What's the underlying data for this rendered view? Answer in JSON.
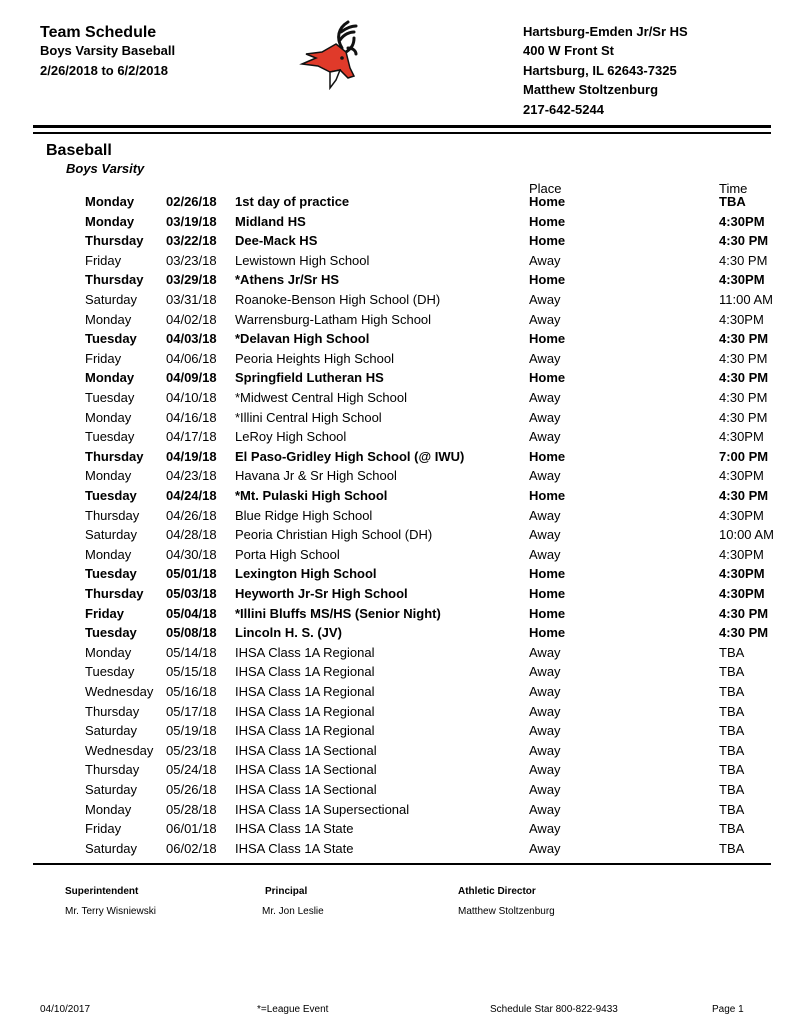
{
  "header": {
    "title": "Team Schedule",
    "subtitle": "Boys Varsity Baseball",
    "date_range": "2/26/2018 to 6/2/2018",
    "school": [
      "Hartsburg-Emden Jr/Sr HS",
      "400 W Front St",
      "Hartsburg, IL 62643-7325",
      "Matthew Stoltzenburg",
      "217-642-5244"
    ],
    "logo": "deer-mascot-logo",
    "logo_color": "#e03a2a"
  },
  "section": {
    "sport": "Baseball",
    "level": "Boys Varsity"
  },
  "columns": {
    "place": "Place",
    "time": "Time"
  },
  "rows": [
    {
      "day": "Monday",
      "date": "02/26/18",
      "opponent": "1st day of practice",
      "place": "Home",
      "time": "TBA",
      "home": true
    },
    {
      "day": "Monday",
      "date": "03/19/18",
      "opponent": "Midland HS",
      "place": "Home",
      "time": "4:30PM",
      "home": true
    },
    {
      "day": "Thursday",
      "date": "03/22/18",
      "opponent": "Dee-Mack HS",
      "place": "Home",
      "time": "4:30 PM",
      "home": true
    },
    {
      "day": "Friday",
      "date": "03/23/18",
      "opponent": "Lewistown High School",
      "place": "Away",
      "time": "4:30 PM",
      "home": false
    },
    {
      "day": "Thursday",
      "date": "03/29/18",
      "opponent": "*Athens Jr/Sr HS",
      "place": "Home",
      "time": "4:30PM",
      "home": true
    },
    {
      "day": "Saturday",
      "date": "03/31/18",
      "opponent": "Roanoke-Benson High School (DH)",
      "place": "Away",
      "time": "11:00 AM",
      "home": false
    },
    {
      "day": "Monday",
      "date": "04/02/18",
      "opponent": "Warrensburg-Latham High School",
      "place": "Away",
      "time": "4:30PM",
      "home": false
    },
    {
      "day": "Tuesday",
      "date": "04/03/18",
      "opponent": "*Delavan High School",
      "place": "Home",
      "time": "4:30 PM",
      "home": true
    },
    {
      "day": "Friday",
      "date": "04/06/18",
      "opponent": "Peoria Heights High School",
      "place": "Away",
      "time": "4:30 PM",
      "home": false
    },
    {
      "day": "Monday",
      "date": "04/09/18",
      "opponent": "Springfield Lutheran HS",
      "place": "Home",
      "time": "4:30 PM",
      "home": true
    },
    {
      "day": "Tuesday",
      "date": "04/10/18",
      "opponent": "*Midwest Central High School",
      "place": "Away",
      "time": "4:30 PM",
      "home": false
    },
    {
      "day": "Monday",
      "date": "04/16/18",
      "opponent": "*Illini Central High School",
      "place": "Away",
      "time": "4:30 PM",
      "home": false
    },
    {
      "day": "Tuesday",
      "date": "04/17/18",
      "opponent": "LeRoy High School",
      "place": "Away",
      "time": "4:30PM",
      "home": false
    },
    {
      "day": "Thursday",
      "date": "04/19/18",
      "opponent": "El Paso-Gridley High School (@ IWU)",
      "place": "Home",
      "time": "7:00 PM",
      "home": true
    },
    {
      "day": "Monday",
      "date": "04/23/18",
      "opponent": "Havana Jr & Sr High School",
      "place": "Away",
      "time": "4:30PM",
      "home": false
    },
    {
      "day": "Tuesday",
      "date": "04/24/18",
      "opponent": "*Mt. Pulaski High School",
      "place": "Home",
      "time": "4:30 PM",
      "home": true
    },
    {
      "day": "Thursday",
      "date": "04/26/18",
      "opponent": "Blue Ridge High School",
      "place": "Away",
      "time": "4:30PM",
      "home": false
    },
    {
      "day": "Saturday",
      "date": "04/28/18",
      "opponent": "Peoria Christian High School (DH)",
      "place": "Away",
      "time": "10:00 AM",
      "home": false
    },
    {
      "day": "Monday",
      "date": "04/30/18",
      "opponent": "Porta High School",
      "place": "Away",
      "time": "4:30PM",
      "home": false
    },
    {
      "day": "Tuesday",
      "date": "05/01/18",
      "opponent": "Lexington High School",
      "place": "Home",
      "time": "4:30PM",
      "home": true
    },
    {
      "day": "Thursday",
      "date": "05/03/18",
      "opponent": "Heyworth Jr-Sr High School",
      "place": "Home",
      "time": "4:30PM",
      "home": true
    },
    {
      "day": "Friday",
      "date": "05/04/18",
      "opponent": "*Illini Bluffs MS/HS (Senior Night)",
      "place": "Home",
      "time": "4:30 PM",
      "home": true
    },
    {
      "day": "Tuesday",
      "date": "05/08/18",
      "opponent": "Lincoln H. S. (JV)",
      "place": "Home",
      "time": "4:30 PM",
      "home": true
    },
    {
      "day": "Monday",
      "date": "05/14/18",
      "opponent": "IHSA Class 1A Regional",
      "place": "Away",
      "time": "TBA",
      "home": false
    },
    {
      "day": "Tuesday",
      "date": "05/15/18",
      "opponent": "IHSA Class 1A Regional",
      "place": "Away",
      "time": "TBA",
      "home": false
    },
    {
      "day": "Wednesday",
      "date": "05/16/18",
      "opponent": "IHSA Class 1A Regional",
      "place": "Away",
      "time": "TBA",
      "home": false
    },
    {
      "day": "Thursday",
      "date": "05/17/18",
      "opponent": "IHSA Class 1A Regional",
      "place": "Away",
      "time": "TBA",
      "home": false
    },
    {
      "day": "Saturday",
      "date": "05/19/18",
      "opponent": "IHSA Class 1A Regional",
      "place": "Away",
      "time": "TBA",
      "home": false
    },
    {
      "day": "Wednesday",
      "date": "05/23/18",
      "opponent": "IHSA Class 1A Sectional",
      "place": "Away",
      "time": "TBA",
      "home": false
    },
    {
      "day": "Thursday",
      "date": "05/24/18",
      "opponent": "IHSA Class 1A Sectional",
      "place": "Away",
      "time": "TBA",
      "home": false
    },
    {
      "day": "Saturday",
      "date": "05/26/18",
      "opponent": "IHSA Class 1A Sectional",
      "place": "Away",
      "time": "TBA",
      "home": false
    },
    {
      "day": "Monday",
      "date": "05/28/18",
      "opponent": "IHSA Class 1A Supersectional",
      "place": "Away",
      "time": "TBA",
      "home": false
    },
    {
      "day": "Friday",
      "date": "06/01/18",
      "opponent": "IHSA Class 1A State",
      "place": "Away",
      "time": "TBA",
      "home": false
    },
    {
      "day": "Saturday",
      "date": "06/02/18",
      "opponent": "IHSA Class 1A State",
      "place": "Away",
      "time": "TBA",
      "home": false
    }
  ],
  "staff": [
    {
      "role": "Superintendent",
      "name": "Mr. Terry Wisniewski"
    },
    {
      "role": "Principal",
      "name": "Mr. Jon Leslie"
    },
    {
      "role": "Athletic Director",
      "name": "Matthew Stoltzenburg"
    }
  ],
  "footer": {
    "date": "04/10/2017",
    "legend": "*=League Event",
    "vendor": "Schedule Star 800-822-9433",
    "page": "Page 1"
  }
}
